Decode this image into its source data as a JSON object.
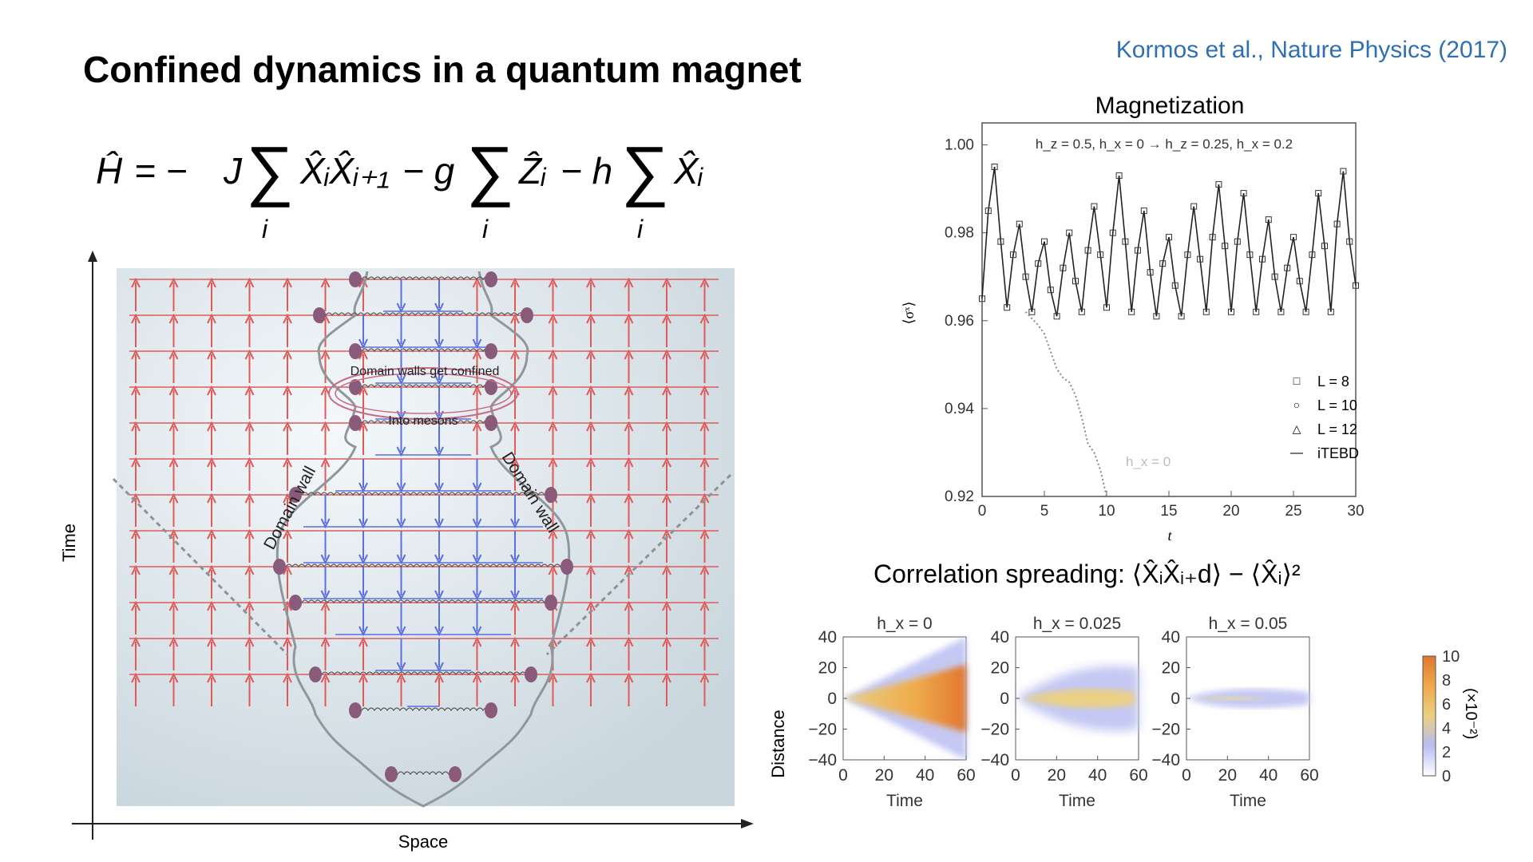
{
  "slide": {
    "title": "Confined dynamics in a quantum magnet",
    "citation": "Kormos et al., Nature Physics (2017)",
    "hamiltonian": "Ĥ = − J ∑ X̂ᵢX̂ᵢ₊₁ − g ∑ Ẑᵢ − h ∑ X̂ᵢ",
    "hamiltonian_terms": {
      "lhs": "Ĥ",
      "eq": "= −",
      "J": "J",
      "sum": "∑",
      "sub_i": "i",
      "term1": "X̂ᵢX̂ᵢ₊₁",
      "minus_g": "− g",
      "term2": "Ẑᵢ",
      "minus_h": "− h",
      "term3": "X̂ᵢ"
    }
  },
  "diagram": {
    "x_axis_label": "Space",
    "y_axis_label": "Time",
    "label_confined": "Domain walls get confined",
    "label_mesons": "Into mesons",
    "label_domain_wall_left": "Domain wall",
    "label_domain_wall_right": "Domain wall",
    "colors": {
      "up_arrow": "#e05a5a",
      "down_arrow": "#5b6fe0",
      "background": "#d9e4ea",
      "particle": "#8a5a7a"
    }
  },
  "magnetization": {
    "title": "Magnetization",
    "quench_label": "h_z = 0.5, h_x = 0 → h_z = 0.25, h_x = 0.2",
    "hx0_label": "h_x = 0",
    "legend": [
      {
        "symbol": "□",
        "label": "L = 8"
      },
      {
        "symbol": "○",
        "label": "L = 10"
      },
      {
        "symbol": "△",
        "label": "L = 12"
      },
      {
        "symbol": "—",
        "label": "iTEBD"
      }
    ]
  },
  "correlation": {
    "title": "Correlation spreading: ⟨X̂ᵢX̂ᵢ₊d⟩ − ⟨X̂ᵢ⟩²",
    "colorbar_label": "(×10⁻²)",
    "colorbar_ticks": [
      "10",
      "8",
      "6",
      "4",
      "2",
      "0"
    ]
  },
  "chart_data": [
    {
      "type": "line",
      "title": "Magnetization",
      "xlabel": "t",
      "ylabel": "⟨σˣ⟩",
      "xlim": [
        0,
        30
      ],
      "ylim": [
        0.92,
        1.005
      ],
      "xticks": [
        "0",
        "5",
        "10",
        "15",
        "20",
        "25",
        "30"
      ],
      "yticks": [
        "0.92",
        "0.94",
        "0.96",
        "0.98",
        "1.00"
      ],
      "grid": false,
      "legend_position": "bottom-right",
      "series": [
        {
          "name": "iTEBD",
          "x": [
            0,
            0.5,
            1.0,
            1.5,
            2.0,
            2.5,
            3.0,
            3.5,
            4.0,
            4.5,
            5.0,
            5.5,
            6.0,
            6.5,
            7.0,
            7.5,
            8.0,
            8.5,
            9.0,
            9.5,
            10.0,
            10.5,
            11.0,
            11.5,
            12.0,
            12.5,
            13.0,
            13.5,
            14.0,
            14.5,
            15.0,
            15.5,
            16.0,
            16.5,
            17.0,
            17.5,
            18.0,
            18.5,
            19.0,
            19.5,
            20.0,
            20.5,
            21.0,
            21.5,
            22.0,
            22.5,
            23.0,
            23.5,
            24.0,
            24.5,
            25.0,
            25.5,
            26.0,
            26.5,
            27.0,
            27.5,
            28.0,
            28.5,
            29.0,
            29.5,
            30.0
          ],
          "y": [
            0.965,
            0.985,
            0.995,
            0.978,
            0.963,
            0.975,
            0.982,
            0.97,
            0.962,
            0.973,
            0.978,
            0.967,
            0.961,
            0.972,
            0.98,
            0.969,
            0.962,
            0.976,
            0.986,
            0.975,
            0.963,
            0.98,
            0.993,
            0.978,
            0.962,
            0.976,
            0.985,
            0.971,
            0.961,
            0.973,
            0.979,
            0.968,
            0.961,
            0.975,
            0.986,
            0.974,
            0.962,
            0.979,
            0.991,
            0.977,
            0.962,
            0.978,
            0.989,
            0.975,
            0.962,
            0.974,
            0.983,
            0.97,
            0.962,
            0.972,
            0.979,
            0.969,
            0.962,
            0.975,
            0.989,
            0.977,
            0.962,
            0.982,
            0.994,
            0.978,
            0.968
          ]
        },
        {
          "name": "h_x = 0",
          "x": [
            3.5,
            4.5,
            5.0,
            5.5,
            6.0,
            6.5,
            7.0,
            7.5,
            8.0,
            8.5,
            9.0,
            9.5,
            10.0
          ],
          "y": [
            0.962,
            0.959,
            0.957,
            0.953,
            0.949,
            0.947,
            0.946,
            0.943,
            0.938,
            0.932,
            0.93,
            0.926,
            0.92
          ]
        }
      ]
    },
    {
      "type": "heatmap",
      "title": "h_x = 0",
      "xlabel": "Time",
      "ylabel": "Distance",
      "xlim": [
        0,
        60
      ],
      "ylim": [
        -40,
        40
      ],
      "xticks": [
        "0",
        "20",
        "40",
        "60"
      ],
      "yticks": [
        "40",
        "20",
        "0",
        "−20",
        "−40"
      ],
      "pattern": "linear light cone, spreading to distance ±40 at time 60"
    },
    {
      "type": "heatmap",
      "title": "h_x = 0.025",
      "xlabel": "Time",
      "xlim": [
        0,
        60
      ],
      "ylim": [
        -40,
        40
      ],
      "xticks": [
        "0",
        "20",
        "40",
        "60"
      ],
      "yticks": [
        "40",
        "20",
        "0",
        "−20",
        "−40"
      ],
      "pattern": "spreading saturating near distance ±20"
    },
    {
      "type": "heatmap",
      "title": "h_x = 0.05",
      "xlabel": "Time",
      "xlim": [
        0,
        60
      ],
      "ylim": [
        -40,
        40
      ],
      "xticks": [
        "0",
        "20",
        "40",
        "60"
      ],
      "yticks": [
        "40",
        "20",
        "0",
        "−20",
        "−40"
      ],
      "pattern": "confined near distance 0"
    }
  ]
}
